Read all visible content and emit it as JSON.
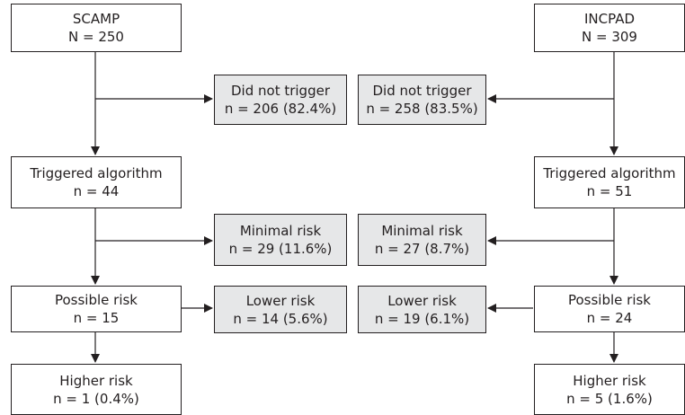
{
  "left": {
    "start": {
      "title": "SCAMP",
      "count": "N = 250"
    },
    "triggered": {
      "title": "Triggered algorithm",
      "count": "n = 44"
    },
    "possible": {
      "title": "Possible risk",
      "count": "n = 15"
    },
    "higher": {
      "title": "Higher risk",
      "count": "n = 1 (0.4%)"
    },
    "not_triggered": {
      "title": "Did not trigger",
      "count": "n = 206 (82.4%)"
    },
    "minimal": {
      "title": "Minimal risk",
      "count": "n = 29 (11.6%)"
    },
    "lower": {
      "title": "Lower risk",
      "count": "n = 14 (5.6%)"
    }
  },
  "right": {
    "start": {
      "title": "INCPAD",
      "count": "N = 309"
    },
    "triggered": {
      "title": "Triggered algorithm",
      "count": "n = 51"
    },
    "possible": {
      "title": "Possible risk",
      "count": "n = 24"
    },
    "higher": {
      "title": "Higher risk",
      "count": "n = 5 (1.6%)"
    },
    "not_triggered": {
      "title": "Did not trigger",
      "count": "n = 258 (83.5%)"
    },
    "minimal": {
      "title": "Minimal risk",
      "count": "n = 27 (8.7%)"
    },
    "lower": {
      "title": "Lower risk",
      "count": "n = 19 (6.1%)"
    }
  },
  "colors": {
    "line": "#231f20",
    "outcome_fill": "#e6e7e8",
    "box_fill": "#ffffff"
  }
}
